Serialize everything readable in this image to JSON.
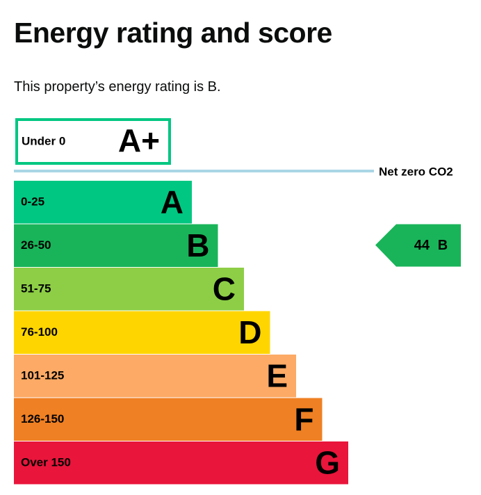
{
  "header": {
    "title": "Energy rating and score",
    "description": "This property’s energy rating is B."
  },
  "top_band": {
    "range": "Under 0",
    "letter": "A+",
    "color": "#00c781"
  },
  "net_zero": {
    "label": "Net zero CO2",
    "color": "#a9d6e5"
  },
  "bands": [
    {
      "range": "0-25",
      "letter": "A",
      "color": "#00c781"
    },
    {
      "range": "26-50",
      "letter": "B",
      "color": "#19b459"
    },
    {
      "range": "51-75",
      "letter": "C",
      "color": "#8dce46"
    },
    {
      "range": "76-100",
      "letter": "D",
      "color": "#ffd500"
    },
    {
      "range": "101-125",
      "letter": "E",
      "color": "#fcaa65"
    },
    {
      "range": "126-150",
      "letter": "F",
      "color": "#ef8023"
    },
    {
      "range": "Over 150",
      "letter": "G",
      "color": "#e9153b"
    }
  ],
  "current": {
    "score": 44,
    "letter": "B"
  }
}
